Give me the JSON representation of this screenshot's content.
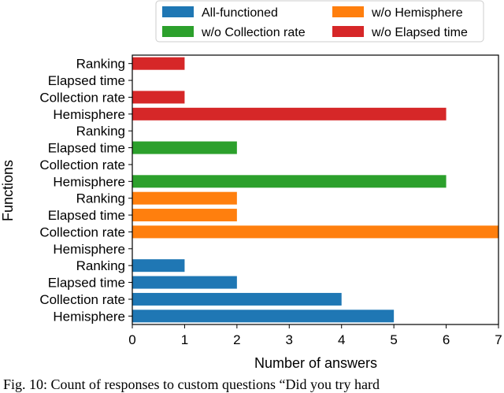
{
  "chart_data": {
    "type": "bar",
    "orientation": "horizontal",
    "title": "",
    "xlabel": "Number of answers",
    "ylabel": "Functions",
    "xlim": [
      0,
      7
    ],
    "xticks": [
      "0",
      "1",
      "2",
      "3",
      "4",
      "5",
      "6",
      "7"
    ],
    "grid": false,
    "legend_position": "top",
    "legend_columns": 2,
    "categories_bottom_to_top": [
      "Hemisphere",
      "Collection rate",
      "Elapsed time",
      "Ranking",
      "Hemisphere",
      "Collection rate",
      "Elapsed time",
      "Ranking",
      "Hemisphere",
      "Collection rate",
      "Elapsed time",
      "Ranking",
      "Hemisphere",
      "Collection rate",
      "Elapsed time",
      "Ranking"
    ],
    "series": [
      {
        "name": "All-functioned",
        "color": "#1f77b4",
        "values": {
          "Hemisphere": 5,
          "Collection rate": 4,
          "Elapsed time": 2,
          "Ranking": 1
        }
      },
      {
        "name": "w/o Hemisphere",
        "color": "#ff7f0e",
        "values": {
          "Hemisphere": 0,
          "Collection rate": 7,
          "Elapsed time": 2,
          "Ranking": 2
        }
      },
      {
        "name": "w/o Collection rate",
        "color": "#2ca02c",
        "values": {
          "Hemisphere": 6,
          "Collection rate": 0,
          "Elapsed time": 2,
          "Ranking": 0
        }
      },
      {
        "name": "w/o Elapsed time",
        "color": "#d62728",
        "values": {
          "Hemisphere": 6,
          "Collection rate": 1,
          "Elapsed time": 0,
          "Ranking": 1
        }
      }
    ]
  },
  "caption": "Fig. 10: Count of responses to custom questions “Did you try hard"
}
